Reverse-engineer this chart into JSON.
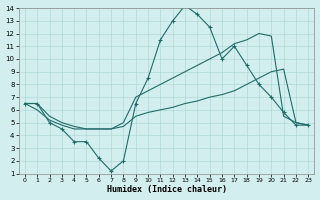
{
  "xlabel": "Humidex (Indice chaleur)",
  "xlim": [
    -0.5,
    23.5
  ],
  "ylim": [
    1,
    14
  ],
  "xticks": [
    0,
    1,
    2,
    3,
    4,
    5,
    6,
    7,
    8,
    9,
    10,
    11,
    12,
    13,
    14,
    15,
    16,
    17,
    18,
    19,
    20,
    21,
    22,
    23
  ],
  "yticks": [
    1,
    2,
    3,
    4,
    5,
    6,
    7,
    8,
    9,
    10,
    11,
    12,
    13,
    14
  ],
  "bg_color": "#d3eeee",
  "grid_color": "#afd9d9",
  "line_color": "#226b6b",
  "line1_x": [
    0,
    1,
    2,
    3,
    4,
    5,
    6,
    7,
    8,
    9,
    10,
    11,
    12,
    13,
    14,
    15,
    16,
    17,
    18,
    19,
    20,
    21,
    22,
    23
  ],
  "line1_y": [
    6.5,
    6.5,
    5.0,
    4.5,
    3.5,
    3.5,
    2.2,
    1.2,
    2.0,
    6.5,
    8.5,
    11.5,
    13.0,
    14.2,
    13.5,
    12.5,
    10.0,
    11.0,
    9.5,
    8.0,
    7.0,
    5.8,
    4.8,
    4.8
  ],
  "line1_markers": [
    0,
    1,
    2,
    3,
    4,
    5,
    6,
    7,
    8,
    9,
    10,
    11,
    12,
    13,
    14,
    15,
    16,
    17,
    18,
    19,
    20,
    21,
    22,
    23
  ],
  "line2_x": [
    0,
    1,
    2,
    3,
    4,
    5,
    6,
    7,
    8,
    9,
    10,
    11,
    12,
    13,
    14,
    15,
    16,
    17,
    18,
    19,
    20,
    21,
    22,
    23
  ],
  "line2_y": [
    6.5,
    6.5,
    5.5,
    5.0,
    4.7,
    4.5,
    4.5,
    4.5,
    5.0,
    7.0,
    7.5,
    8.0,
    8.5,
    9.0,
    9.5,
    10.0,
    10.5,
    11.2,
    11.5,
    12.0,
    11.8,
    5.5,
    5.0,
    4.8
  ],
  "line3_x": [
    0,
    1,
    2,
    3,
    4,
    5,
    6,
    7,
    8,
    9,
    10,
    11,
    12,
    13,
    14,
    15,
    16,
    17,
    18,
    19,
    20,
    21,
    22,
    23
  ],
  "line3_y": [
    6.5,
    6.0,
    5.2,
    4.8,
    4.5,
    4.5,
    4.5,
    4.5,
    4.7,
    5.5,
    5.8,
    6.0,
    6.2,
    6.5,
    6.7,
    7.0,
    7.2,
    7.5,
    8.0,
    8.5,
    9.0,
    9.2,
    5.0,
    4.8
  ]
}
